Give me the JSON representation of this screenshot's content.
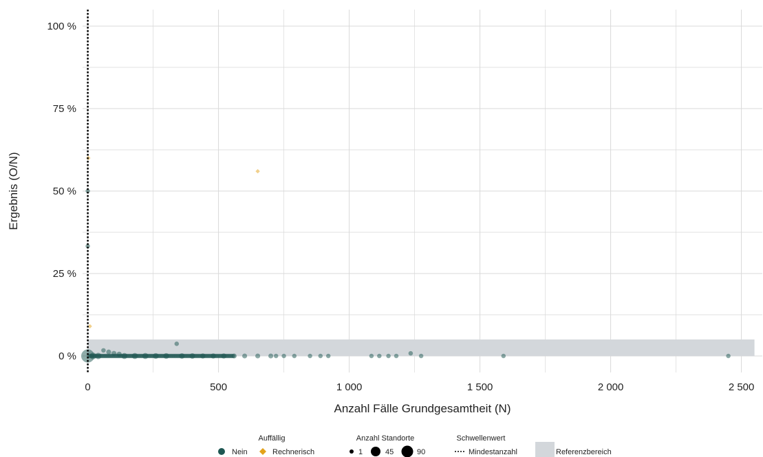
{
  "chart_data": {
    "type": "scatter",
    "xlabel": "Anzahl Fälle Grundgesamtheit (N)",
    "ylabel": "Ergebnis (O/N)",
    "xlim": [
      -20,
      2580
    ],
    "ylim": [
      -5,
      105
    ],
    "x_ticks": [
      0,
      500,
      1000,
      1500,
      2000,
      2500
    ],
    "x_tick_labels": [
      "0",
      "500",
      "1 000",
      "1 500",
      "2 000",
      "2 500"
    ],
    "y_ticks": [
      0,
      25,
      50,
      75,
      100
    ],
    "y_tick_labels": [
      "0 %",
      "25 %",
      "50 %",
      "75 %",
      "100 %"
    ],
    "grid": true,
    "threshold": {
      "name": "Mindestanzahl",
      "x": 0,
      "style": "dotted",
      "color": "#000000"
    },
    "reference_band": {
      "name": "Referenzbereich",
      "y": [
        0,
        5
      ],
      "x": [
        0,
        2550
      ],
      "color": "#d3d7db"
    },
    "colors": {
      "nein": "#1e5752",
      "rechnerisch": "#e3a21a",
      "grid": "#d9d9d9",
      "band": "#d3d7db"
    },
    "series": [
      {
        "name": "Nein",
        "marker": "circle",
        "points": [
          {
            "x": 0,
            "y": 0,
            "n": 90
          },
          {
            "x": 0,
            "y": 50,
            "n": 1
          },
          {
            "x": 0,
            "y": 33.3,
            "n": 1
          },
          {
            "x": 20,
            "y": 0,
            "n": 10
          },
          {
            "x": 40,
            "y": 0,
            "n": 8
          },
          {
            "x": 60,
            "y": 1.7,
            "n": 1
          },
          {
            "x": 80,
            "y": 1.2,
            "n": 2
          },
          {
            "x": 100,
            "y": 0.8,
            "n": 2
          },
          {
            "x": 120,
            "y": 0.5,
            "n": 3
          },
          {
            "x": 140,
            "y": 0,
            "n": 6
          },
          {
            "x": 180,
            "y": 0,
            "n": 6
          },
          {
            "x": 220,
            "y": 0,
            "n": 6
          },
          {
            "x": 260,
            "y": 0,
            "n": 5
          },
          {
            "x": 300,
            "y": 0,
            "n": 5
          },
          {
            "x": 340,
            "y": 3.7,
            "n": 1
          },
          {
            "x": 360,
            "y": 0,
            "n": 4
          },
          {
            "x": 400,
            "y": 0,
            "n": 4
          },
          {
            "x": 440,
            "y": 0,
            "n": 3
          },
          {
            "x": 480,
            "y": 0,
            "n": 3
          },
          {
            "x": 520,
            "y": 0,
            "n": 3
          },
          {
            "x": 560,
            "y": 0,
            "n": 2
          },
          {
            "x": 600,
            "y": 0,
            "n": 2
          },
          {
            "x": 650,
            "y": 0,
            "n": 2
          },
          {
            "x": 700,
            "y": 0,
            "n": 2
          },
          {
            "x": 720,
            "y": 0,
            "n": 1
          },
          {
            "x": 750,
            "y": 0,
            "n": 1
          },
          {
            "x": 790,
            "y": 0,
            "n": 1
          },
          {
            "x": 850,
            "y": 0,
            "n": 1
          },
          {
            "x": 890,
            "y": 0,
            "n": 1
          },
          {
            "x": 920,
            "y": 0,
            "n": 1
          },
          {
            "x": 1085,
            "y": 0,
            "n": 1
          },
          {
            "x": 1115,
            "y": 0,
            "n": 1
          },
          {
            "x": 1150,
            "y": 0,
            "n": 1
          },
          {
            "x": 1180,
            "y": 0,
            "n": 1
          },
          {
            "x": 1235,
            "y": 0.8,
            "n": 1
          },
          {
            "x": 1275,
            "y": 0,
            "n": 1
          },
          {
            "x": 1590,
            "y": 0,
            "n": 1
          },
          {
            "x": 2450,
            "y": 0,
            "n": 1
          }
        ]
      },
      {
        "name": "Rechnerisch",
        "marker": "diamond",
        "points": [
          {
            "x": 2,
            "y": 60,
            "n": 1
          },
          {
            "x": 650,
            "y": 56,
            "n": 1
          },
          {
            "x": 8,
            "y": 9,
            "n": 1
          }
        ]
      }
    ],
    "legend": {
      "position": "bottom",
      "auffaellig": {
        "title": "Auffällig",
        "items": [
          "Nein",
          "Rechnerisch"
        ]
      },
      "standorte": {
        "title": "Anzahl Standorte",
        "items": [
          "1",
          "45",
          "90"
        ]
      },
      "schwellenwert": {
        "title": "Schwellenwert",
        "items": [
          "Mindestanzahl"
        ]
      },
      "referenz": {
        "items": [
          "Referenzbereich"
        ]
      }
    }
  }
}
